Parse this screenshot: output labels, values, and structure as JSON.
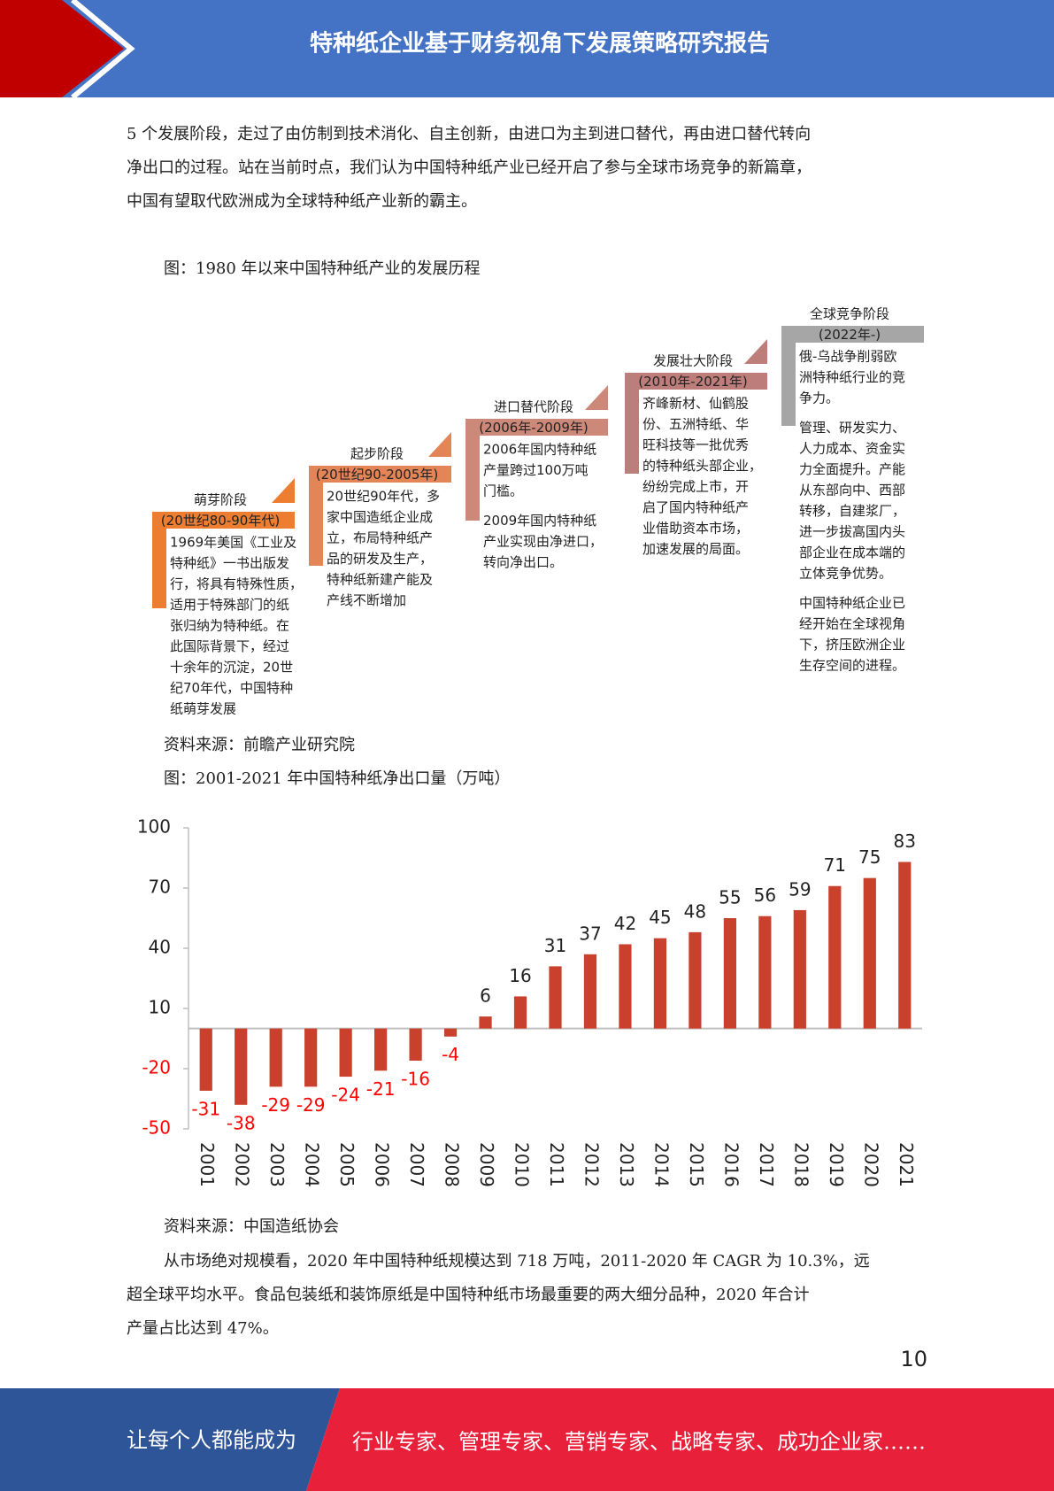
{
  "header": {
    "title": "特种纸企业基于财务视角下发展策略研究报告"
  },
  "intro": {
    "lines": [
      "5 个发展阶段，走过了由仿制到技术消化、自主创新，由进口为主到进口替代，再由进口替代转向",
      "净出口的过程。站在当前时点，我们认为中国特种纸产业已经开启了参与全球市场竞争的新篇章，",
      "中国有望取代欧洲成为全球特种纸产业新的霸主。"
    ]
  },
  "figure1": {
    "caption": "图：1980 年以来中国特种纸产业的发展历程",
    "source": "资料来源：前瞻产业研究院",
    "stages": [
      {
        "title": "萌芽阶段",
        "period": "(20世纪80-90年代)",
        "color": "#ed7d31",
        "paragraphs": [
          [
            "1969年美国《工业及",
            "特种纸》一书出版发",
            "行，将具有特殊性质，",
            "适用于特殊部门的纸",
            "张归纳为特种纸。在",
            "此国际背景下，经过",
            "十余年的沉淀，20世",
            "纪70年代，中国特种",
            "纸萌芽发展"
          ]
        ]
      },
      {
        "title": "起步阶段",
        "period": "(20世纪90-2005年)",
        "color": "#e48558",
        "paragraphs": [
          [
            "20世纪90年代，多",
            "家中国造纸企业成",
            "立，布局特种纸产",
            "品的研发及生产，",
            "特种纸新建产能及",
            "产线不断增加"
          ]
        ]
      },
      {
        "title": "进口替代阶段",
        "period": "(2006年-2009年)",
        "color": "#cc8878",
        "paragraphs": [
          [
            "2006年国内特种纸",
            "产量跨过100万吨",
            "门槛。"
          ],
          [
            "2009年国内特种纸",
            "产业实现由净进口，",
            "转向净出口。"
          ]
        ]
      },
      {
        "title": "发展壮大阶段",
        "period": "(2010年-2021年)",
        "color": "#bd7e7b",
        "paragraphs": [
          [
            "齐峰新材、仙鹤股",
            "份、五洲特纸、华",
            "旺科技等一批优秀",
            "的特种纸头部企业，",
            "纷纷完成上市，开",
            "启了国内特种纸产",
            "业借助资本市场，",
            "加速发展的局面。"
          ]
        ]
      },
      {
        "title": "全球竞争阶段",
        "period": "(2022年-)",
        "color": "#a6a6a6",
        "paragraphs": [
          [
            "俄-乌战争削弱欧",
            "洲特种纸行业的竞",
            "争力。"
          ],
          [
            "管理、研发实力、",
            "人力成本、资金实",
            "力全面提升。产能",
            "从东部向中、西部",
            "转移，自建浆厂，",
            "进一步拔高国内头",
            "部企业在成本端的",
            "立体竞争优势。"
          ],
          [
            "中国特种纸企业已",
            "经开始在全球视角",
            "下，挤压欧洲企业",
            "生存空间的进程。"
          ]
        ]
      }
    ]
  },
  "figure2": {
    "caption": "图：2001-2021 年中国特种纸净出口量（万吨）",
    "source": "资料来源：中国造纸协会"
  },
  "chart_data": {
    "type": "bar",
    "categories": [
      "2001",
      "2002",
      "2003",
      "2004",
      "2005",
      "2006",
      "2007",
      "2008",
      "2009",
      "2010",
      "2011",
      "2012",
      "2013",
      "2014",
      "2015",
      "2016",
      "2017",
      "2018",
      "2019",
      "2020",
      "2021"
    ],
    "values": [
      -31,
      -38,
      -29,
      -29,
      -24,
      -21,
      -16,
      -4,
      6,
      16,
      31,
      37,
      42,
      45,
      48,
      55,
      56,
      59,
      71,
      75,
      83
    ],
    "color": "#c9402c",
    "negative_label_color": "#ff0000",
    "ylim": [
      -50,
      100
    ],
    "yticks": [
      -50,
      -20,
      10,
      40,
      70,
      100
    ],
    "grid": false
  },
  "closing": {
    "lines": [
      "从市场绝对规模看，2020 年中国特种纸规模达到 718 万吨，2011-2020 年 CAGR 为 10.3%，远",
      "超全球平均水平。食品包装纸和装饰原纸是中国特种纸市场最重要的两大细分品种，2020 年合计",
      "产量占比达到 47%。"
    ]
  },
  "page_number": "10",
  "footer": {
    "left": "让每个人都能成为",
    "right": "行业专家、管理专家、营销专家、战略专家、成功企业家……"
  }
}
